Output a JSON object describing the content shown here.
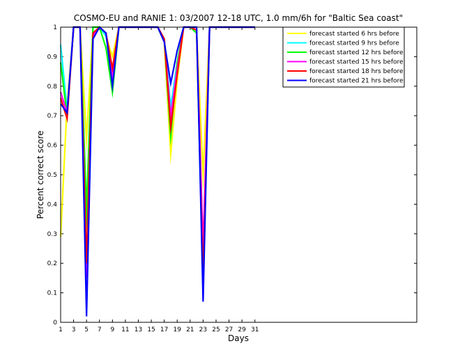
{
  "chart_data": {
    "type": "line",
    "title": "COSMO-EU and RANIE 1: 03/2007 12-18 UTC, 1.0 mm/6h for \"Baltic Sea coast\"",
    "xlabel": "Days",
    "ylabel": "Percent correct score",
    "xlim": [
      1,
      56
    ],
    "ylim": [
      0,
      1
    ],
    "xticks": [
      "1",
      "3",
      "5",
      "7",
      "9",
      "11",
      "13",
      "15",
      "17",
      "19",
      "21",
      "23",
      "25",
      "27",
      "29",
      "31"
    ],
    "yticks": [
      "0",
      "0.1",
      "0.2",
      "0.3",
      "0.4",
      "0.5",
      "0.6",
      "0.7",
      "0.8",
      "0.9",
      "1"
    ],
    "legend_position": "top-right",
    "grid": false,
    "x": [
      1,
      2,
      3,
      4,
      5,
      6,
      7,
      8,
      9,
      10,
      11,
      12,
      13,
      14,
      15,
      16,
      17,
      18,
      19,
      20,
      21,
      22,
      23,
      24,
      25,
      26,
      27,
      28,
      29,
      30,
      31
    ],
    "series": [
      {
        "name": "forecast started 6 hrs before",
        "color": "#ffff00",
        "values": [
          0.29,
          0.74,
          1,
          1,
          0.62,
          1,
          1,
          0.97,
          0.9,
          1,
          1,
          1,
          1,
          1,
          1,
          1,
          0.95,
          0.57,
          0.82,
          1,
          1,
          0.99,
          0.5,
          1,
          1,
          1,
          1,
          1,
          1,
          1,
          1
        ]
      },
      {
        "name": "forecast started 9 hrs before",
        "color": "#00ffff",
        "values": [
          0.94,
          0.72,
          1,
          1,
          0.33,
          1,
          1,
          0.97,
          0.85,
          1,
          1,
          1,
          1,
          1,
          1,
          1,
          0.96,
          0.73,
          0.88,
          1,
          1,
          0.98,
          0.2,
          1,
          1,
          1,
          1,
          1,
          1,
          1,
          1
        ]
      },
      {
        "name": "forecast started 12 hrs before",
        "color": "#00ff00",
        "values": [
          0.88,
          0.7,
          1,
          1,
          0.38,
          1,
          1,
          0.93,
          0.78,
          1,
          1,
          1,
          1,
          1,
          1,
          1,
          0.96,
          0.63,
          0.88,
          1,
          1,
          0.98,
          0.12,
          1,
          1,
          1,
          1,
          1,
          1,
          1,
          1
        ]
      },
      {
        "name": "forecast started 15 hrs before",
        "color": "#ff00ff",
        "values": [
          0.78,
          0.71,
          1,
          1,
          0.15,
          0.97,
          1,
          0.98,
          0.84,
          1,
          1,
          1,
          1,
          1,
          1,
          1,
          0.96,
          0.7,
          0.86,
          1,
          1,
          0.99,
          0.25,
          1,
          1,
          1,
          1,
          1,
          1,
          1,
          1
        ]
      },
      {
        "name": "forecast started 18 hrs before",
        "color": "#ff0000",
        "values": [
          0.76,
          0.69,
          1,
          1,
          0.2,
          0.98,
          1,
          0.98,
          0.86,
          1,
          1,
          1,
          1,
          1,
          1,
          1,
          0.96,
          0.66,
          0.84,
          1,
          1,
          0.99,
          0.15,
          1,
          1,
          1,
          1,
          1,
          1,
          1,
          1
        ]
      },
      {
        "name": "forecast started 21 hrs before",
        "color": "#0000ff",
        "values": [
          0.74,
          0.71,
          1,
          1,
          0.02,
          0.96,
          1,
          0.98,
          0.8,
          1,
          1,
          1,
          1,
          1,
          1,
          1,
          0.95,
          0.81,
          0.92,
          1,
          1,
          1,
          0.07,
          1,
          1,
          1,
          1,
          1,
          1,
          1,
          1
        ]
      }
    ]
  }
}
